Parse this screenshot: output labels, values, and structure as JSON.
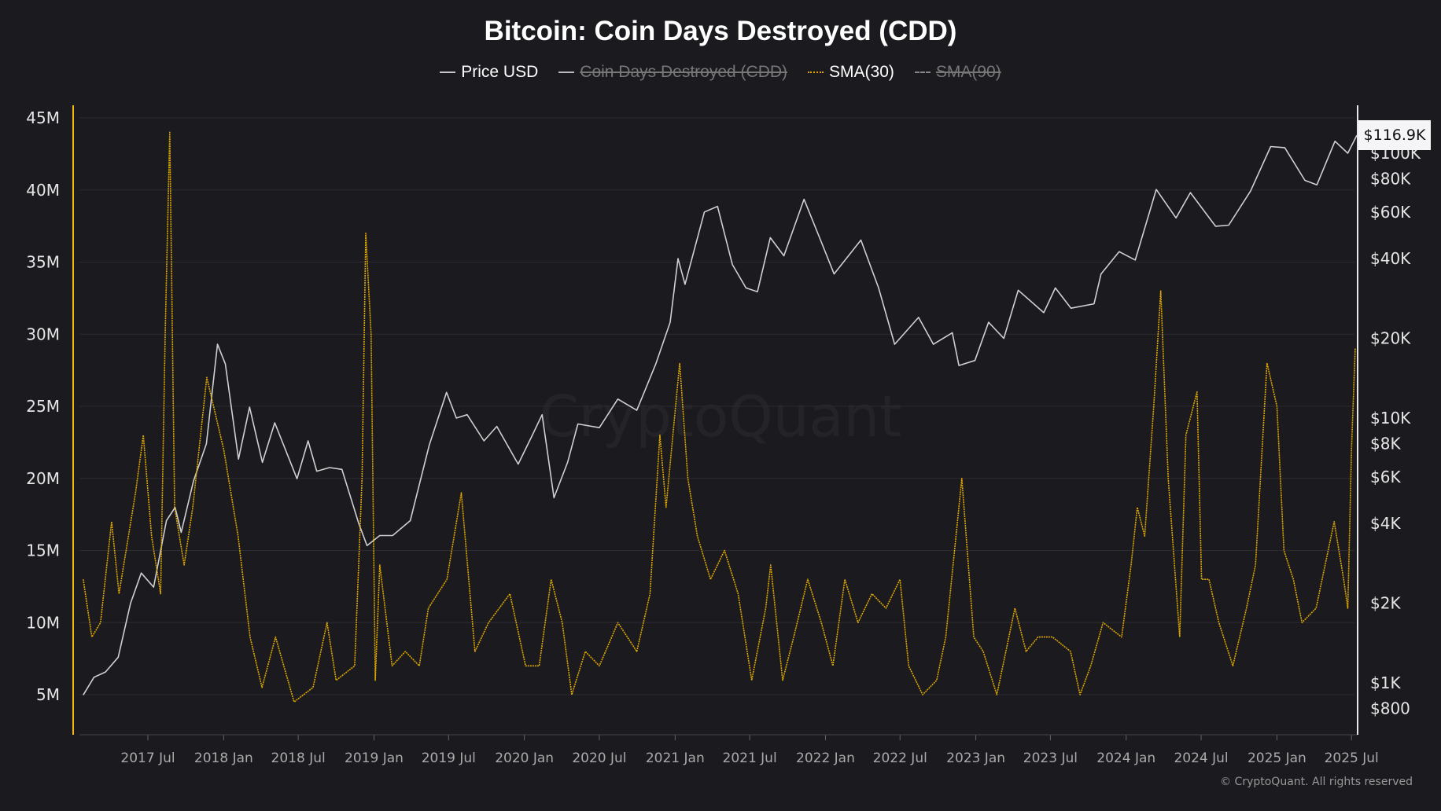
{
  "chart_data": {
    "type": "line",
    "title": "Bitcoin: Coin Days Destroyed (CDD)",
    "legend": [
      {
        "label": "Price USD",
        "active": true,
        "color": "#c8c8c8"
      },
      {
        "label": "Coin Days Destroyed (CDD)",
        "active": false,
        "color": "#bbbbbb"
      },
      {
        "label": "SMA(30)",
        "active": true,
        "color": "#e0a800"
      },
      {
        "label": "SMA(90)",
        "active": false,
        "color": "#999999"
      }
    ],
    "legend_placement": "top-center",
    "left_axis": {
      "ticks": [
        "45M",
        "40M",
        "35M",
        "30M",
        "25M",
        "20M",
        "15M",
        "10M",
        "5M"
      ],
      "tick_values": [
        45,
        40,
        35,
        30,
        25,
        20,
        15,
        10,
        5
      ],
      "unit": "M",
      "color": "#f0b90b"
    },
    "right_axis": {
      "scale": "log",
      "ticks": [
        "$100K",
        "$80K",
        "$60K",
        "$40K",
        "$20K",
        "$10K",
        "$8K",
        "$6K",
        "$4K",
        "$2K",
        "$1K",
        "$800"
      ],
      "tick_values": [
        100000,
        80000,
        60000,
        40000,
        20000,
        10000,
        8000,
        6000,
        4000,
        2000,
        1000,
        800
      ]
    },
    "x_axis": {
      "ticks": [
        "2017 Jul",
        "2018 Jan",
        "2018 Jul",
        "2019 Jan",
        "2019 Jul",
        "2020 Jan",
        "2020 Jul",
        "2021 Jan",
        "2021 Jul",
        "2022 Jan",
        "2022 Jul",
        "2023 Jan",
        "2023 Jul",
        "2024 Jan",
        "2024 Jul",
        "2025 Jan",
        "2025 Jul"
      ],
      "tick_dates": [
        "2017-07-01",
        "2018-01-01",
        "2018-07-01",
        "2019-01-01",
        "2019-07-01",
        "2020-01-01",
        "2020-07-01",
        "2021-01-01",
        "2021-07-01",
        "2022-01-01",
        "2022-07-01",
        "2023-01-01",
        "2023-07-01",
        "2024-01-01",
        "2024-07-01",
        "2025-01-01",
        "2025-07-01"
      ]
    },
    "grid": true,
    "last_price_label": "$116.9K",
    "series": [
      {
        "name": "Price USD",
        "axis": "right",
        "color": "#d0d0d0",
        "points": [
          [
            "2017-01-25",
            900
          ],
          [
            "2017-02-20",
            1050
          ],
          [
            "2017-03-20",
            1100
          ],
          [
            "2017-04-20",
            1250
          ],
          [
            "2017-05-20",
            2000
          ],
          [
            "2017-06-15",
            2600
          ],
          [
            "2017-07-15",
            2300
          ],
          [
            "2017-08-15",
            4100
          ],
          [
            "2017-09-05",
            4600
          ],
          [
            "2017-09-20",
            3700
          ],
          [
            "2017-10-20",
            5800
          ],
          [
            "2017-11-20",
            8000
          ],
          [
            "2017-12-17",
            19000
          ],
          [
            "2018-01-05",
            16000
          ],
          [
            "2018-02-06",
            7000
          ],
          [
            "2018-03-05",
            11000
          ],
          [
            "2018-04-05",
            6800
          ],
          [
            "2018-05-05",
            9600
          ],
          [
            "2018-06-28",
            5900
          ],
          [
            "2018-07-25",
            8200
          ],
          [
            "2018-08-15",
            6300
          ],
          [
            "2018-09-15",
            6500
          ],
          [
            "2018-10-15",
            6400
          ],
          [
            "2018-11-25",
            4000
          ],
          [
            "2018-12-15",
            3300
          ],
          [
            "2019-01-15",
            3600
          ],
          [
            "2019-02-15",
            3600
          ],
          [
            "2019-03-30",
            4100
          ],
          [
            "2019-05-15",
            7900
          ],
          [
            "2019-06-26",
            12500
          ],
          [
            "2019-07-20",
            10000
          ],
          [
            "2019-08-15",
            10300
          ],
          [
            "2019-09-25",
            8200
          ],
          [
            "2019-10-26",
            9300
          ],
          [
            "2019-12-17",
            6700
          ],
          [
            "2020-01-20",
            8600
          ],
          [
            "2020-02-13",
            10300
          ],
          [
            "2020-03-13",
            5000
          ],
          [
            "2020-04-15",
            6800
          ],
          [
            "2020-05-10",
            9500
          ],
          [
            "2020-07-01",
            9200
          ],
          [
            "2020-08-15",
            11800
          ],
          [
            "2020-09-30",
            10700
          ],
          [
            "2020-11-15",
            16000
          ],
          [
            "2020-12-20",
            23000
          ],
          [
            "2021-01-08",
            40000
          ],
          [
            "2021-01-25",
            32000
          ],
          [
            "2021-03-13",
            60000
          ],
          [
            "2021-04-14",
            63000
          ],
          [
            "2021-05-20",
            38000
          ],
          [
            "2021-06-22",
            31000
          ],
          [
            "2021-07-20",
            30000
          ],
          [
            "2021-08-20",
            48000
          ],
          [
            "2021-09-22",
            41000
          ],
          [
            "2021-11-10",
            67000
          ],
          [
            "2021-12-20",
            47000
          ],
          [
            "2022-01-22",
            35000
          ],
          [
            "2022-03-28",
            47000
          ],
          [
            "2022-05-10",
            31000
          ],
          [
            "2022-06-18",
            19000
          ],
          [
            "2022-08-15",
            24000
          ],
          [
            "2022-09-20",
            19000
          ],
          [
            "2022-11-05",
            21000
          ],
          [
            "2022-11-21",
            15800
          ],
          [
            "2022-12-30",
            16500
          ],
          [
            "2023-02-01",
            23000
          ],
          [
            "2023-03-10",
            20000
          ],
          [
            "2023-04-14",
            30400
          ],
          [
            "2023-06-15",
            25000
          ],
          [
            "2023-07-13",
            31000
          ],
          [
            "2023-08-20",
            26000
          ],
          [
            "2023-10-15",
            27000
          ],
          [
            "2023-11-01",
            35000
          ],
          [
            "2023-12-15",
            42500
          ],
          [
            "2024-01-23",
            39500
          ],
          [
            "2024-03-14",
            73000
          ],
          [
            "2024-05-01",
            57000
          ],
          [
            "2024-06-05",
            71000
          ],
          [
            "2024-08-05",
            53000
          ],
          [
            "2024-09-06",
            53500
          ],
          [
            "2024-10-29",
            72000
          ],
          [
            "2024-12-17",
            106000
          ],
          [
            "2025-01-20",
            105000
          ],
          [
            "2025-03-10",
            79000
          ],
          [
            "2025-04-08",
            76000
          ],
          [
            "2025-05-22",
            111000
          ],
          [
            "2025-06-22",
            100000
          ],
          [
            "2025-07-14",
            116900
          ]
        ]
      },
      {
        "name": "SMA(30)",
        "axis": "left",
        "color": "#e0a800",
        "points": [
          [
            "2017-01-25",
            13
          ],
          [
            "2017-02-15",
            9
          ],
          [
            "2017-03-08",
            10
          ],
          [
            "2017-04-04",
            17
          ],
          [
            "2017-04-22",
            12
          ],
          [
            "2017-06-01",
            19
          ],
          [
            "2017-06-20",
            23
          ],
          [
            "2017-07-10",
            16
          ],
          [
            "2017-08-01",
            12
          ],
          [
            "2017-08-12",
            30
          ],
          [
            "2017-08-23",
            44
          ],
          [
            "2017-09-04",
            18
          ],
          [
            "2017-09-27",
            14
          ],
          [
            "2017-10-18",
            18
          ],
          [
            "2017-11-21",
            27
          ],
          [
            "2018-01-01",
            22
          ],
          [
            "2018-02-05",
            16
          ],
          [
            "2018-03-06",
            9
          ],
          [
            "2018-04-04",
            5.5
          ],
          [
            "2018-05-07",
            9
          ],
          [
            "2018-06-21",
            4.5
          ],
          [
            "2018-08-06",
            5.5
          ],
          [
            "2018-09-09",
            10
          ],
          [
            "2018-10-01",
            6
          ],
          [
            "2018-11-15",
            7
          ],
          [
            "2018-12-03",
            20
          ],
          [
            "2018-12-12",
            37
          ],
          [
            "2018-12-25",
            30
          ],
          [
            "2019-01-04",
            6
          ],
          [
            "2019-01-15",
            14
          ],
          [
            "2019-02-14",
            7
          ],
          [
            "2019-03-18",
            8
          ],
          [
            "2019-04-21",
            7
          ],
          [
            "2019-05-13",
            11
          ],
          [
            "2019-06-27",
            13
          ],
          [
            "2019-08-01",
            19
          ],
          [
            "2019-09-03",
            8
          ],
          [
            "2019-10-06",
            10
          ],
          [
            "2019-11-27",
            12
          ],
          [
            "2020-01-04",
            7
          ],
          [
            "2020-02-06",
            7
          ],
          [
            "2020-03-06",
            13
          ],
          [
            "2020-04-02",
            10
          ],
          [
            "2020-04-25",
            5
          ],
          [
            "2020-05-28",
            8
          ],
          [
            "2020-07-01",
            7
          ],
          [
            "2020-08-15",
            10
          ],
          [
            "2020-09-30",
            8
          ],
          [
            "2020-11-01",
            12
          ],
          [
            "2020-11-25",
            23
          ],
          [
            "2020-12-10",
            18
          ],
          [
            "2021-01-12",
            28
          ],
          [
            "2021-02-01",
            20
          ],
          [
            "2021-02-24",
            16
          ],
          [
            "2021-03-28",
            13
          ],
          [
            "2021-05-01",
            15
          ],
          [
            "2021-06-03",
            12
          ],
          [
            "2021-07-06",
            6
          ],
          [
            "2021-08-09",
            11
          ],
          [
            "2021-08-21",
            14
          ],
          [
            "2021-09-19",
            6
          ],
          [
            "2021-10-16",
            9
          ],
          [
            "2021-11-19",
            13
          ],
          [
            "2021-12-22",
            10
          ],
          [
            "2022-01-19",
            7
          ],
          [
            "2022-02-17",
            13
          ],
          [
            "2022-03-21",
            10
          ],
          [
            "2022-04-24",
            12
          ],
          [
            "2022-05-28",
            11
          ],
          [
            "2022-07-01",
            13
          ],
          [
            "2022-07-22",
            7
          ],
          [
            "2022-08-25",
            5
          ],
          [
            "2022-09-28",
            6
          ],
          [
            "2022-10-20",
            9
          ],
          [
            "2022-11-28",
            20
          ],
          [
            "2022-12-27",
            9
          ],
          [
            "2023-01-19",
            8
          ],
          [
            "2023-02-21",
            5
          ],
          [
            "2023-04-06",
            11
          ],
          [
            "2023-05-03",
            8
          ],
          [
            "2023-06-01",
            9
          ],
          [
            "2023-07-06",
            9
          ],
          [
            "2023-08-19",
            8
          ],
          [
            "2023-09-11",
            5
          ],
          [
            "2023-10-07",
            7
          ],
          [
            "2023-11-06",
            10
          ],
          [
            "2023-12-21",
            9
          ],
          [
            "2024-01-13",
            14
          ],
          [
            "2024-01-28",
            18
          ],
          [
            "2024-02-15",
            16
          ],
          [
            "2024-03-08",
            25
          ],
          [
            "2024-03-25",
            33
          ],
          [
            "2024-04-12",
            20
          ],
          [
            "2024-05-10",
            9
          ],
          [
            "2024-05-25",
            23
          ],
          [
            "2024-06-21",
            26
          ],
          [
            "2024-07-02",
            13
          ],
          [
            "2024-07-20",
            13
          ],
          [
            "2024-08-13",
            10
          ],
          [
            "2024-09-16",
            7
          ],
          [
            "2024-10-19",
            11
          ],
          [
            "2024-11-10",
            14
          ],
          [
            "2024-12-08",
            28
          ],
          [
            "2025-01-01",
            25
          ],
          [
            "2025-01-18",
            15
          ],
          [
            "2025-02-10",
            13
          ],
          [
            "2025-03-03",
            10
          ],
          [
            "2025-04-06",
            11
          ],
          [
            "2025-05-20",
            17
          ],
          [
            "2025-06-12",
            13
          ],
          [
            "2025-06-22",
            11
          ],
          [
            "2025-07-01",
            22
          ],
          [
            "2025-07-10",
            29
          ]
        ]
      }
    ],
    "watermark": "CryptoQuant",
    "copyright": "© CryptoQuant. All rights reserved"
  }
}
